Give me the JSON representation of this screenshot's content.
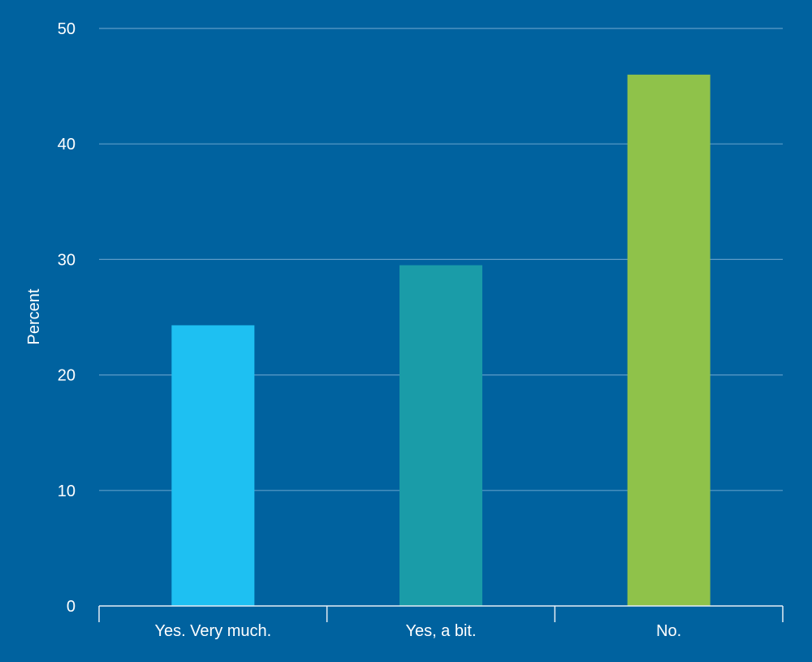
{
  "chart_data": {
    "type": "bar",
    "title": "",
    "xlabel": "",
    "ylabel": "Percent",
    "ylim": [
      0,
      50
    ],
    "yticks": [
      0,
      10,
      20,
      30,
      40,
      50
    ],
    "categories": [
      "Yes. Very much.",
      "Yes, a bit.",
      "No."
    ],
    "values": [
      24.3,
      29.5,
      46
    ],
    "colors": [
      "#1ec0f2",
      "#1a9ca8",
      "#8fc24a"
    ],
    "grid": true,
    "legend": "none"
  },
  "colors": {
    "background": "#00629f",
    "gridline": "#5d9cc8",
    "axis": "#e6eef5",
    "text": "#ffffff"
  }
}
